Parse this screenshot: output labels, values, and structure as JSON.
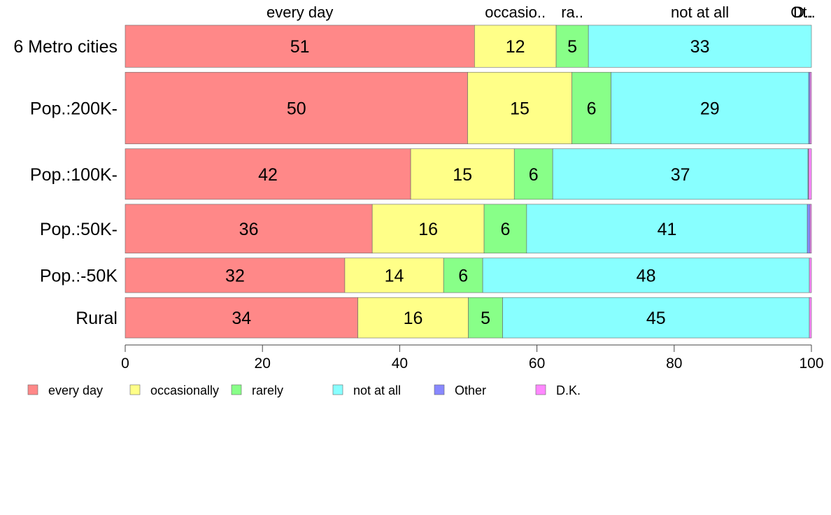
{
  "chart_data": {
    "type": "bar",
    "orientation": "horizontal",
    "stacked": true,
    "categories": [
      "6 Metro cities",
      "Pop.:200K-",
      "Pop.:100K-",
      "Pop.:50K-",
      "Pop.:-50K",
      "Rural"
    ],
    "series": [
      {
        "name": "every day",
        "color": "#FF8888",
        "top_label": "every day",
        "values": [
          50.9,
          49.9,
          41.6,
          36.0,
          32.0,
          33.9
        ],
        "labels": [
          "51",
          "50",
          "42",
          "36",
          "32",
          "34"
        ]
      },
      {
        "name": "occasionally",
        "color": "#FFFF88",
        "top_label": "occasio..",
        "values": [
          11.9,
          15.2,
          15.1,
          16.3,
          14.4,
          16.1
        ],
        "labels": [
          "12",
          "15",
          "15",
          "16",
          "14",
          "16"
        ]
      },
      {
        "name": "rarely",
        "color": "#88FF88",
        "top_label": "ra..",
        "values": [
          4.7,
          5.7,
          5.6,
          6.2,
          5.7,
          5.0
        ],
        "labels": [
          "5",
          "6",
          "6",
          "6",
          "6",
          "5"
        ]
      },
      {
        "name": "not at all",
        "color": "#88FFFF",
        "top_label": "not at all",
        "values": [
          32.5,
          28.8,
          37.2,
          40.9,
          47.6,
          44.7
        ],
        "labels": [
          "33",
          "29",
          "37",
          "41",
          "48",
          "45"
        ]
      },
      {
        "name": "Other",
        "color": "#8888FF",
        "top_label": "Ot..",
        "values": [
          0.0,
          0.2,
          0.1,
          0.4,
          0.0,
          0.0
        ],
        "labels": [
          "",
          "",
          "",
          "",
          "",
          ""
        ]
      },
      {
        "name": "D.K.",
        "color": "#FF88FF",
        "top_label": "D..",
        "values": [
          0.0,
          0.2,
          0.4,
          0.2,
          0.3,
          0.3
        ],
        "labels": [
          "",
          "",
          "",
          "",
          "",
          ""
        ]
      }
    ],
    "bar_weights": [
      1.0,
      1.7,
      1.2,
      1.16,
      0.82,
      0.96
    ],
    "xlim": [
      0,
      100
    ],
    "xticks": [
      "0",
      "20",
      "40",
      "60",
      "80",
      "100"
    ],
    "xlabel": "",
    "ylabel": "",
    "title": "",
    "grid": false,
    "legend_position": "bottom"
  }
}
